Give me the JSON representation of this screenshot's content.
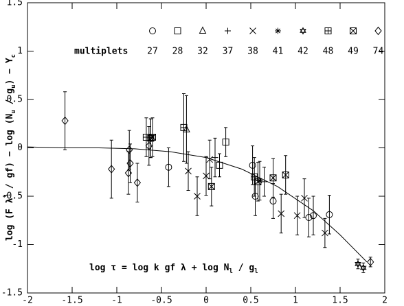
{
  "chart_data": {
    "type": "scatter",
    "xlim": [
      -2,
      2
    ],
    "ylim": [
      -1.5,
      1.5
    ],
    "xticks": [
      -2,
      -1.5,
      -1,
      -0.5,
      0,
      0.5,
      1,
      1.5,
      2
    ],
    "yticks": [
      -1.5,
      -1,
      -0.5,
      0,
      0.5,
      1,
      1.5
    ],
    "y_label": [
      "log (F λ",
      "3",
      " / gf) − log (N",
      "u",
      " / g",
      "u",
      ") − Y",
      "c"
    ],
    "equation": [
      "log τ = log k gf λ + log N",
      "l",
      " / g",
      "l"
    ],
    "legend_title": "multiplets",
    "color": "#000000",
    "curve": {
      "x": [
        -2,
        -1.6,
        -1.2,
        -0.8,
        -0.4,
        0,
        0.4,
        0.8,
        1.2,
        1.5,
        1.8
      ],
      "values": [
        0.01,
        0.0,
        0.0,
        -0.01,
        -0.04,
        -0.1,
        -0.22,
        -0.4,
        -0.65,
        -0.9,
        -1.18
      ]
    },
    "series": [
      {
        "name": "27",
        "marker": "circle",
        "x": [
          -0.42,
          0.52,
          0.55,
          0.75,
          1.15,
          1.2,
          1.38
        ],
        "values": [
          -0.2,
          -0.18,
          -0.5,
          -0.55,
          -0.72,
          -0.7,
          -0.69
        ],
        "errors": [
          0.2,
          0.2,
          0.2,
          0.18,
          0.2,
          0.2,
          0.2
        ]
      },
      {
        "name": "28",
        "marker": "square",
        "x": [
          0.22,
          0.15
        ],
        "values": [
          0.06,
          -0.18
        ],
        "errors": [
          0.15,
          0.12
        ]
      },
      {
        "name": "32",
        "marker": "triangle",
        "x": [
          -0.22
        ],
        "values": [
          0.19
        ],
        "errors": [
          0.35
        ]
      },
      {
        "name": "37",
        "marker": "plus",
        "x": [
          0.1,
          0.65
        ],
        "values": [
          -0.1,
          -0.35
        ],
        "errors": [
          0.2,
          0.15
        ]
      },
      {
        "name": "38",
        "marker": "x",
        "x": [
          -0.2,
          -0.1,
          0.0,
          0.04,
          0.84,
          1.02,
          1.1,
          1.33
        ],
        "values": [
          -0.24,
          -0.5,
          -0.29,
          -0.12,
          -0.68,
          -0.7,
          -0.52,
          -0.88
        ],
        "errors": [
          0.2,
          0.2,
          0.2,
          0.2,
          0.2,
          0.2,
          0.2,
          0.15
        ]
      },
      {
        "name": "41",
        "marker": "asterisk",
        "x": [
          0.6
        ],
        "values": [
          -0.34
        ],
        "errors": [
          0.2
        ]
      },
      {
        "name": "42",
        "marker": "star",
        "x": [
          1.7,
          1.76
        ],
        "values": [
          -1.2,
          -1.24
        ],
        "errors": [
          0.05,
          0.05
        ]
      },
      {
        "name": "48",
        "marker": "boxplus",
        "x": [
          -0.67,
          0.54,
          -0.25
        ],
        "values": [
          0.11,
          -0.3,
          0.21
        ],
        "errors": [
          0.2,
          0.2,
          0.35
        ]
      },
      {
        "name": "49",
        "marker": "boxx",
        "x": [
          -0.6,
          -0.62,
          0.06,
          0.58,
          0.75,
          0.89
        ],
        "values": [
          0.11,
          0.1,
          -0.4,
          -0.35,
          -0.31,
          -0.28
        ],
        "errors": [
          0.2,
          0.2,
          0.2,
          0.2,
          0.2,
          0.2
        ]
      },
      {
        "name": "74",
        "marker": "diamond",
        "x": [
          -1.58,
          -1.06,
          -0.86,
          -0.85,
          -0.87,
          -0.77,
          -0.64,
          -0.62,
          1.84
        ],
        "values": [
          0.28,
          -0.22,
          -0.02,
          -0.16,
          -0.26,
          -0.36,
          0.02,
          0.1,
          -1.18
        ],
        "errors": [
          0.3,
          0.3,
          0.2,
          0.2,
          0.22,
          0.2,
          0.2,
          0.2,
          0.05
        ]
      }
    ]
  }
}
